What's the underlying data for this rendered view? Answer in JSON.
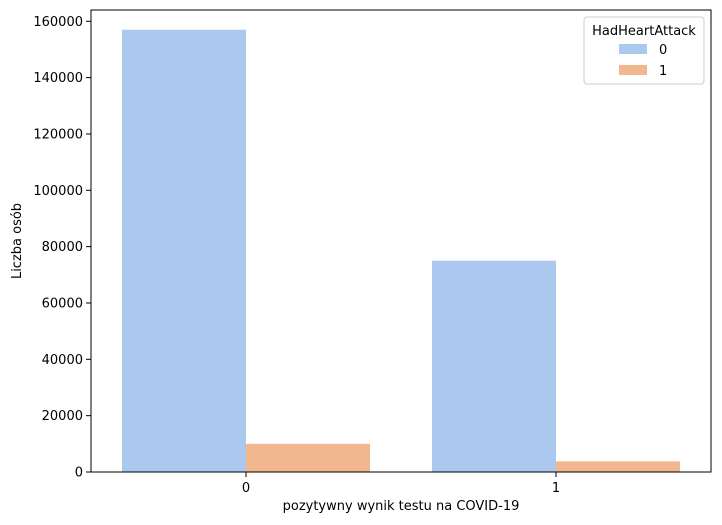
{
  "chart_data": {
    "type": "bar",
    "title": "",
    "xlabel": "pozytywny wynik testu na COVID-19",
    "ylabel": "Liczba osób",
    "categories": [
      "0",
      "1"
    ],
    "ylim": [
      0,
      164000
    ],
    "yticks": [
      0,
      20000,
      40000,
      60000,
      80000,
      100000,
      120000,
      140000,
      160000
    ],
    "grid": false,
    "legend": {
      "title": "HadHeartAttack",
      "placement": "top-right"
    },
    "series": [
      {
        "name": "0",
        "color": "#abc9ef",
        "values": [
          157000,
          75000
        ]
      },
      {
        "name": "1",
        "color": "#f1b890",
        "values": [
          10000,
          3800
        ]
      }
    ]
  }
}
